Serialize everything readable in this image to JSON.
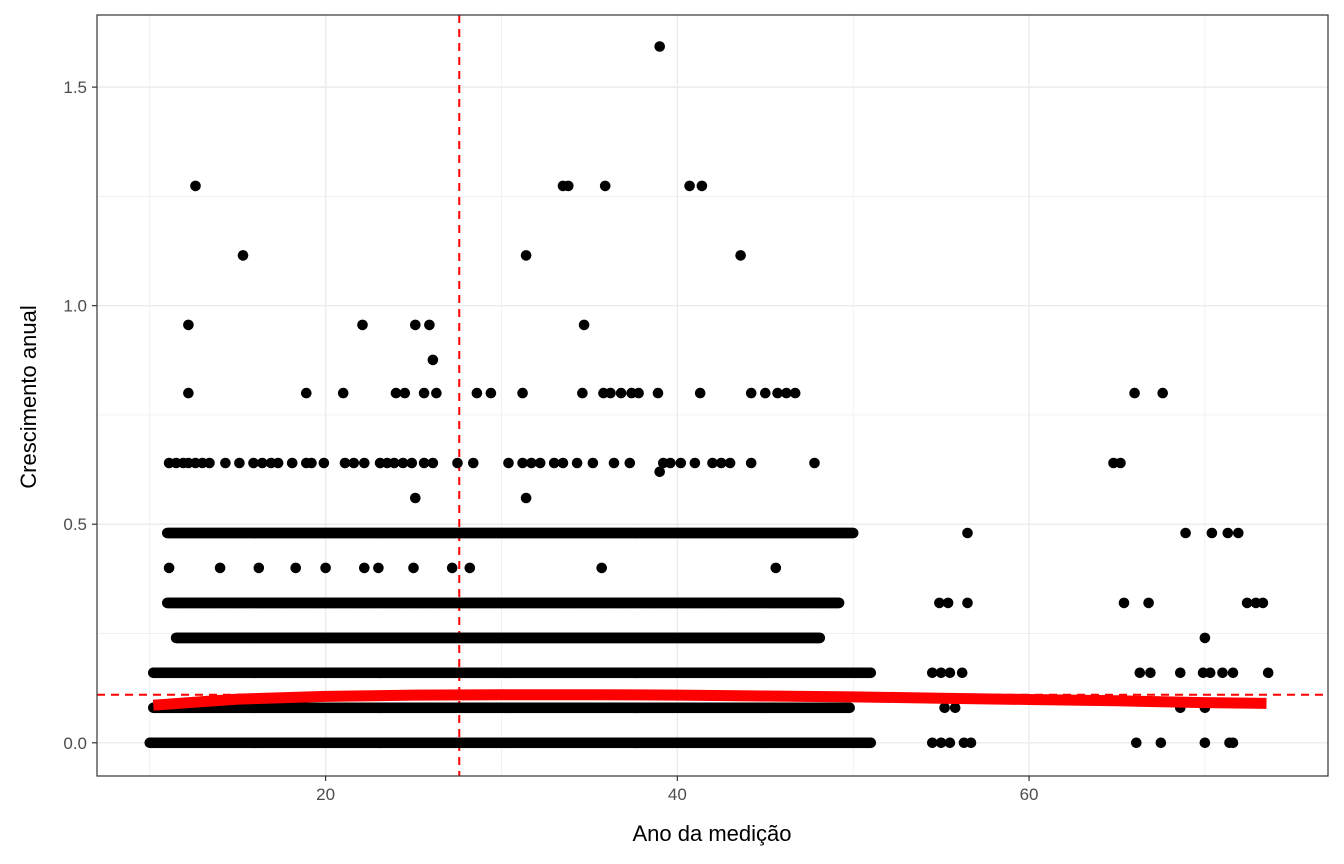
{
  "chart_data": {
    "type": "scatter",
    "title": "",
    "xlabel": "Ano da medição",
    "ylabel": "Crescimento anual",
    "xlim": [
      7.0,
      77.0
    ],
    "ylim": [
      -0.076,
      1.665
    ],
    "xticks": [
      20,
      40,
      60
    ],
    "xtick_labels": [
      "20",
      "40",
      "60"
    ],
    "yticks": [
      0.0,
      0.5,
      1.0,
      1.5
    ],
    "ytick_labels": [
      "0.0",
      "0.5",
      "1.0",
      "1.5"
    ],
    "grid": true,
    "legend": "none",
    "colors": {
      "points": "#000000",
      "smooth": "#ff0000",
      "reference": "#ff0000",
      "grid": "#ebebeb",
      "panel_border": "#333333"
    },
    "reference_lines": {
      "vertical_x": 27.6,
      "horizontal_y": 0.11
    },
    "smooth_curve": {
      "x": [
        10.2,
        15,
        20,
        25,
        30,
        35,
        40,
        45,
        50,
        55,
        60,
        65,
        70,
        73.5
      ],
      "y": [
        0.086,
        0.1,
        0.106,
        0.109,
        0.11,
        0.11,
        0.109,
        0.107,
        0.105,
        0.102,
        0.099,
        0.096,
        0.092,
        0.09
      ]
    },
    "series": [
      {
        "name": "",
        "bands": [
          {
            "y": 0.0,
            "ranges": [
              [
                10.0,
                51.0
              ]
            ],
            "extra_x": [
              54.5,
              55.0,
              55.5,
              56.3,
              56.7,
              66.1,
              67.5,
              70.0,
              71.4,
              71.6
            ]
          },
          {
            "y": 0.08,
            "ranges": [
              [
                10.2,
                49.8
              ]
            ],
            "extra_x": [
              55.2,
              55.8,
              68.6,
              70.0
            ]
          },
          {
            "y": 0.16,
            "ranges": [
              [
                10.2,
                51.0
              ]
            ],
            "extra_x": [
              54.5,
              55.0,
              55.5,
              56.2,
              66.3,
              66.9,
              68.6,
              69.9,
              70.3,
              71.0,
              71.6,
              73.6
            ]
          },
          {
            "y": 0.24,
            "ranges": [
              [
                11.5,
                48.1
              ]
            ],
            "extra_x": [
              70.0
            ]
          },
          {
            "y": 0.32,
            "ranges": [
              [
                11.0,
                49.2
              ]
            ],
            "extra_x": [
              54.9,
              55.4,
              56.5,
              65.4,
              66.8,
              72.4,
              72.9,
              73.3
            ]
          },
          {
            "y": 0.4,
            "ranges": [],
            "extra_x": [
              11.1,
              14.0,
              16.2,
              18.3,
              20.0,
              22.2,
              23.0,
              25.0,
              27.2,
              28.2,
              35.7,
              45.6
            ]
          },
          {
            "y": 0.48,
            "ranges": [
              [
                11.0,
                50.0
              ]
            ],
            "extra_x": [
              56.5,
              68.9,
              70.4,
              71.3,
              71.9
            ]
          },
          {
            "y": 0.56,
            "ranges": [],
            "extra_x": [
              25.1,
              31.4
            ]
          },
          {
            "y": 0.62,
            "ranges": [],
            "extra_x": [
              39.0
            ]
          },
          {
            "y": 0.64,
            "ranges": [],
            "extra_x": [
              11.1,
              11.5,
              11.9,
              12.2,
              12.6,
              13.0,
              13.4,
              14.3,
              15.1,
              15.9,
              16.4,
              16.9,
              17.3,
              18.1,
              18.9,
              19.2,
              19.9,
              21.1,
              21.6,
              22.2,
              23.1,
              23.5,
              23.9,
              24.4,
              24.9,
              25.6,
              26.1,
              27.5,
              28.4,
              30.4,
              31.2,
              31.7,
              32.2,
              33.0,
              33.5,
              34.3,
              35.2,
              36.4,
              37.3,
              39.2,
              39.6,
              40.2,
              41.0,
              42.0,
              42.5,
              43.0,
              44.2,
              47.8,
              64.8,
              65.2
            ]
          },
          {
            "y": 0.8,
            "ranges": [],
            "extra_x": [
              12.2,
              18.9,
              21.0,
              24.0,
              24.5,
              25.6,
              26.3,
              28.6,
              29.4,
              31.2,
              34.6,
              35.8,
              36.2,
              36.8,
              37.4,
              37.8,
              38.9,
              41.3,
              44.2,
              45.0,
              45.7,
              46.2,
              46.7,
              66.0,
              67.6
            ]
          },
          {
            "y": 0.876,
            "ranges": [],
            "extra_x": [
              26.1
            ]
          },
          {
            "y": 0.956,
            "ranges": [],
            "extra_x": [
              12.2,
              22.1,
              25.1,
              25.9,
              34.7
            ]
          },
          {
            "y": 1.115,
            "ranges": [],
            "extra_x": [
              15.3,
              31.4,
              43.6
            ]
          },
          {
            "y": 1.274,
            "ranges": [],
            "extra_x": [
              12.6,
              33.5,
              33.8,
              35.9,
              40.7,
              41.4
            ]
          },
          {
            "y": 1.593,
            "ranges": [],
            "extra_x": [
              39.0
            ]
          }
        ]
      }
    ]
  }
}
